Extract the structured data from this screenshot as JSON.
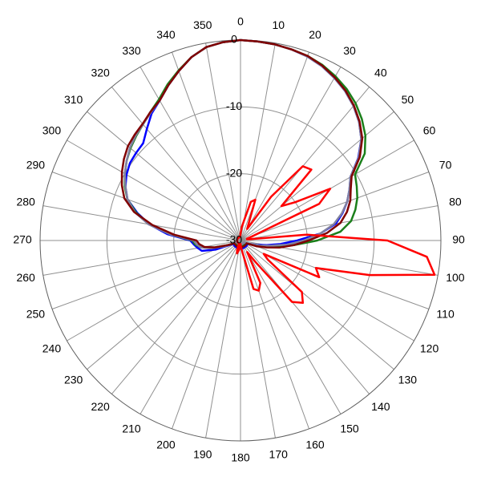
{
  "chart_data": {
    "type": "polar",
    "theta": [
      0,
      5,
      10,
      15,
      20,
      25,
      30,
      35,
      40,
      45,
      50,
      55,
      60,
      65,
      70,
      75,
      80,
      85,
      90,
      95,
      100,
      105,
      110,
      115,
      120,
      125,
      130,
      135,
      140,
      145,
      150,
      155,
      160,
      165,
      170,
      175,
      180,
      185,
      190,
      195,
      200,
      205,
      210,
      215,
      220,
      225,
      230,
      235,
      240,
      245,
      250,
      255,
      260,
      265,
      270,
      275,
      280,
      285,
      290,
      295,
      300,
      305,
      310,
      315,
      320,
      325,
      330,
      335,
      340,
      345,
      350,
      355
    ],
    "thetaticks": [
      0,
      10,
      20,
      30,
      40,
      50,
      60,
      70,
      80,
      90,
      100,
      110,
      120,
      130,
      140,
      150,
      160,
      170,
      180,
      190,
      200,
      210,
      220,
      230,
      240,
      250,
      260,
      270,
      280,
      290,
      300,
      310,
      320,
      330,
      340,
      350
    ],
    "rlim": [
      -30,
      0
    ],
    "rticks": [
      -30,
      -20,
      -10,
      0
    ],
    "grid": true,
    "series": [
      {
        "color": "#0000ff",
        "values": [
          0,
          -0.1,
          -0.2,
          -0.4,
          -0.7,
          -1.2,
          -1.9,
          -2.7,
          -3.7,
          -4.9,
          -6.4,
          -8.5,
          -11,
          -12,
          -13,
          -14.2,
          -15.5,
          -18,
          -21.5,
          -24,
          -26,
          -27.5,
          -28.5,
          -29,
          -28.8,
          -28.8,
          -28.8,
          -28.8,
          -28.8,
          -28.8,
          -28.8,
          -28.8,
          -28.8,
          -28.8,
          -28.8,
          -28.8,
          -28.8,
          -28.8,
          -28.8,
          -28.8,
          -28.8,
          -28.8,
          -28.8,
          -28.8,
          -28.8,
          -28.8,
          -28.8,
          -28.8,
          -28.8,
          -28.8,
          -26,
          -24,
          -23.5,
          -23,
          -22.5,
          -19,
          -16.2,
          -14,
          -12,
          -11,
          -10.3,
          -9.8,
          -9.6,
          -9.4,
          -8.2,
          -6.8,
          -5.8,
          -4.4,
          -3,
          -1.6,
          -0.6,
          -0.2
        ]
      },
      {
        "color": "#1a7f1a",
        "values": [
          0,
          -0.1,
          -0.2,
          -0.4,
          -0.6,
          -1,
          -1.6,
          -2.3,
          -3.2,
          -4.3,
          -5.6,
          -7.3,
          -10.2,
          -10.8,
          -11.4,
          -12.2,
          -13.2,
          -15,
          -18.5,
          -22,
          -25,
          -27,
          -28.5,
          -29,
          -29.2,
          -29.2,
          -29.2,
          -29.2,
          -29.2,
          -29.2,
          -29.2,
          -29.2,
          -29.2,
          -29.2,
          -29.2,
          -29.2,
          -29.2,
          -29.2,
          -29.2,
          -29.2,
          -29.2,
          -29.2,
          -29.2,
          -29.2,
          -29.2,
          -29.2,
          -29.2,
          -29.2,
          -29.2,
          -29.2,
          -28,
          -26,
          -24,
          -23.2,
          -22.8,
          -19.5,
          -16.2,
          -13.8,
          -12,
          -10.9,
          -10,
          -9.2,
          -8.5,
          -7.9,
          -7.3,
          -6.5,
          -5.6,
          -4.2,
          -2.9,
          -1.6,
          -0.6,
          -0.2
        ]
      },
      {
        "color": "#8080a0",
        "values": [
          0,
          -0.1,
          -0.2,
          -0.4,
          -0.7,
          -1.2,
          -1.9,
          -2.7,
          -3.7,
          -4.9,
          -6.4,
          -8.4,
          -11,
          -12,
          -13,
          -14.3,
          -15.8,
          -18,
          -20.5,
          -23,
          -25.5,
          -27,
          -28.5,
          -29,
          -29.4,
          -29.4,
          -29.4,
          -29.4,
          -29.4,
          -29.4,
          -29.4,
          -29.4,
          -29.4,
          -29.4,
          -29.4,
          -29.4,
          -29.4,
          -29.4,
          -29.4,
          -29.4,
          -29.4,
          -29.4,
          -29.4,
          -29.4,
          -29.4,
          -29.4,
          -29.4,
          -29.4,
          -29.4,
          -29.4,
          -27.5,
          -25.5,
          -24,
          -23.4,
          -23,
          -19.5,
          -16,
          -13.6,
          -12,
          -11,
          -10,
          -9.2,
          -8.4,
          -7.8,
          -7.3,
          -6.6,
          -5.8,
          -4.4,
          -3,
          -1.6,
          -0.6,
          -0.2
        ]
      },
      {
        "color": "#800000",
        "values": [
          0,
          -0.1,
          -0.2,
          -0.4,
          -0.6,
          -1.1,
          -1.8,
          -2.6,
          -3.6,
          -4.8,
          -6.2,
          -8.2,
          -10.8,
          -11.8,
          -12.5,
          -13.5,
          -14.8,
          -17,
          -19.8,
          -22,
          -24,
          -26,
          -27.5,
          -29,
          -29,
          -29,
          -29,
          -29,
          -29,
          -29,
          -29,
          -29,
          -29,
          -29,
          -29,
          -29,
          -29,
          -29,
          -29,
          -29,
          -29,
          -29,
          -29,
          -29,
          -29,
          -29,
          -29,
          -29,
          -29,
          -29,
          -28,
          -26,
          -24.5,
          -23.8,
          -23.4,
          -20,
          -16.6,
          -13.5,
          -11.5,
          -10.4,
          -9.5,
          -8.7,
          -8,
          -7.6,
          -7.2,
          -6.5,
          -5.8,
          -4.4,
          -3,
          -1.6,
          -0.6,
          -0.2
        ]
      },
      {
        "color": "#ff0000",
        "values": [
          -29,
          -28,
          -27,
          -24,
          -23.5,
          -27,
          -28,
          -22,
          -15.5,
          -15,
          -22,
          -20,
          -14.5,
          -17,
          -28,
          -29,
          -29,
          -20,
          -8,
          -2,
          -0.5,
          -10,
          -18,
          -17,
          -26,
          -25,
          -18,
          -16.8,
          -18,
          -26,
          -28,
          -23,
          -22,
          -22.5,
          -28,
          -29,
          -29.5,
          -29,
          -28.5,
          -28,
          -28.5,
          -29.5,
          -29.5,
          -29.5,
          -29.5,
          -29.5,
          -29.5,
          -29.5,
          -29.5,
          -29.5,
          -29.5,
          -29.5,
          -29.5,
          -29.5,
          -29.5,
          -29.5,
          -29.5,
          -29.5,
          -29.5,
          -29.5,
          -29.5,
          -29.5,
          -29.5,
          -29.5,
          -29.5,
          -29.5,
          -29.5,
          -29.5,
          -29.5,
          -29.5,
          -29.5,
          -29.5
        ]
      }
    ]
  }
}
